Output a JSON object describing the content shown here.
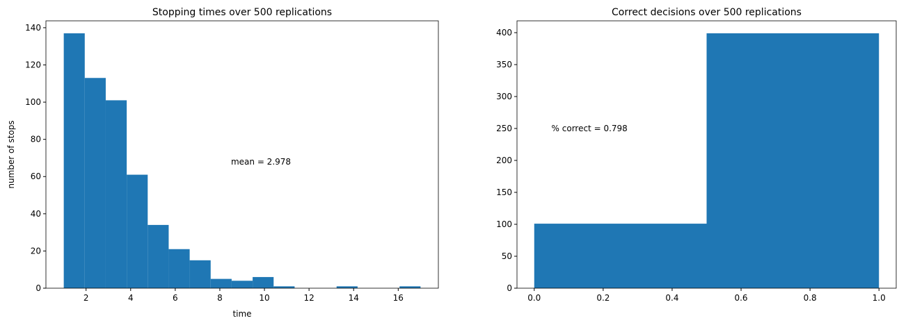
{
  "chart_data": [
    {
      "type": "bar",
      "title": "Stopping times over 500 replications",
      "xlabel": "time",
      "ylabel": "number of stops",
      "bin_edges_range": [
        1,
        17
      ],
      "values": [
        137,
        113,
        101,
        61,
        34,
        21,
        15,
        5,
        4,
        6,
        1,
        0,
        0,
        1,
        0,
        0,
        1
      ],
      "xlim": [
        0.2,
        17.8
      ],
      "ylim": [
        0,
        143.7
      ],
      "xticks": [
        2,
        4,
        6,
        8,
        10,
        12,
        14,
        16
      ],
      "yticks": [
        0,
        20,
        40,
        60,
        80,
        100,
        120,
        140
      ],
      "annotation": {
        "text": "mean = 2.978",
        "x": 8.5,
        "y": 68
      },
      "color": "#1f77b4",
      "grid": false
    },
    {
      "type": "bar",
      "title": "Correct decisions over 500 replications",
      "xlabel": "",
      "ylabel": "",
      "bin_edges_range": [
        0,
        1
      ],
      "values": [
        101,
        399
      ],
      "xlim": [
        -0.05,
        1.05
      ],
      "ylim": [
        0,
        418.5
      ],
      "xticks": [
        0.0,
        0.2,
        0.4,
        0.6,
        0.8,
        1.0
      ],
      "yticks": [
        0,
        50,
        100,
        150,
        200,
        250,
        300,
        350,
        400
      ],
      "annotation": {
        "text": "% correct = 0.798",
        "x": 0.05,
        "y": 250
      },
      "color": "#1f77b4",
      "grid": false
    }
  ]
}
